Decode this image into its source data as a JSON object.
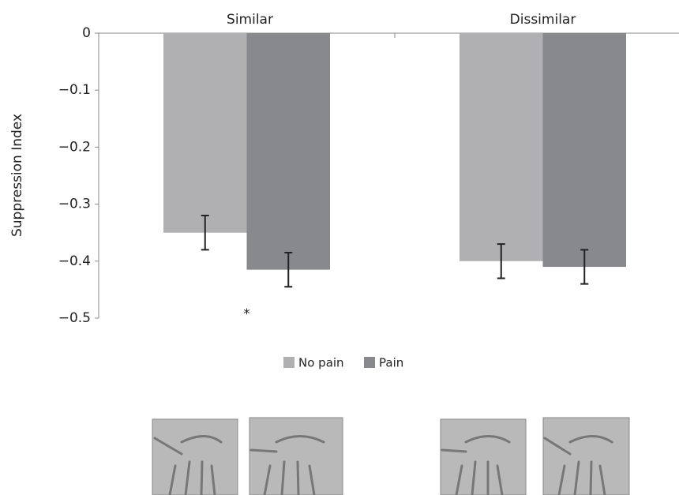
{
  "chart_data": {
    "type": "bar",
    "ylabel": "Suppression Index",
    "categories": [
      "Similar",
      "Dissimilar"
    ],
    "series": [
      {
        "name": "No pain",
        "color": "#b0b0b3",
        "values": [
          -0.35,
          -0.4
        ],
        "errors": [
          0.03,
          0.03
        ]
      },
      {
        "name": "Pain",
        "color": "#88898c",
        "values": [
          -0.415,
          -0.41
        ],
        "errors": [
          0.03,
          0.03
        ]
      }
    ],
    "ylim": [
      0,
      -0.5
    ],
    "yticks": [
      0,
      {
        "value": -0.1,
        "label": "−0.1"
      },
      {
        "value": -0.2,
        "label": "−0.2"
      },
      {
        "value": -0.3,
        "label": "−0.3"
      },
      {
        "value": -0.4,
        "label": "−0.4"
      },
      {
        "value": -0.5,
        "label": "−0.5"
      }
    ],
    "annotations": [
      {
        "text": "*"
      }
    ]
  }
}
